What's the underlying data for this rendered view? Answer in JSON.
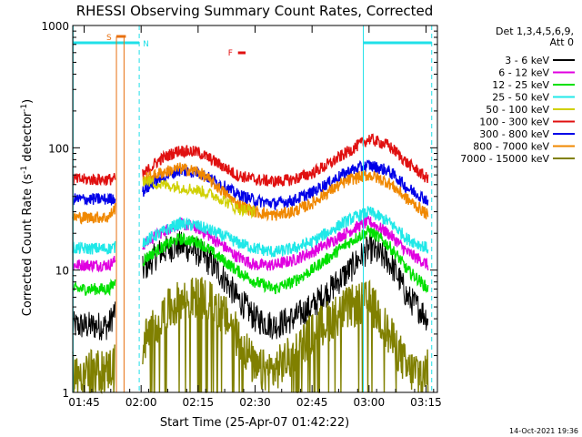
{
  "chart_data": {
    "type": "line",
    "title": "RHESSI Observing Summary Count Rates, Corrected",
    "xlabel": "Start Time (25-Apr-07 01:42:22)",
    "ylabel_parts": [
      "Corrected Count Rate (s",
      "-1",
      " detector",
      "-1",
      ")"
    ],
    "yscale": "log",
    "ylim": [
      1,
      1000
    ],
    "xlim_minutes_after_0142": [
      0,
      96
    ],
    "x_ticks": [
      {
        "label": "01:45",
        "minute": 3
      },
      {
        "label": "02:00",
        "minute": 18
      },
      {
        "label": "02:15",
        "minute": 33
      },
      {
        "label": "02:30",
        "minute": 48
      },
      {
        "label": "02:45",
        "minute": 63
      },
      {
        "label": "03:00",
        "minute": 78
      },
      {
        "label": "03:15",
        "minute": 93
      }
    ],
    "y_ticks": [
      {
        "label": "1",
        "value": 1
      },
      {
        "label": "10",
        "value": 10
      },
      {
        "label": "100",
        "value": 100
      },
      {
        "label": "1000",
        "value": 1000
      }
    ],
    "legend_header": [
      "Det 1,3,4,5,6,9,",
      "Att 0"
    ],
    "legend_placement": "right",
    "timestamp": "14-Oct-2021 19:36",
    "flags": {
      "S": {
        "label": "S",
        "color": "#e87010"
      },
      "N": {
        "label": "N",
        "color": "#20e0e8"
      },
      "F": {
        "label": "F",
        "color": "#e01010"
      }
    },
    "night_intervals_minutes": [
      [
        0,
        17.5
      ],
      [
        76.5,
        94.5
      ]
    ],
    "saa_interval_minutes": [
      11.5,
      13.5
    ],
    "flare_marker_minute": [
      43.5,
      45.5
    ],
    "series": [
      {
        "name": "3 - 6 keV",
        "color": "#000000",
        "x": [
          9.5,
          18.5,
          23,
          28,
          33,
          38,
          43,
          48,
          53,
          58,
          63,
          68,
          73,
          78,
          83,
          88,
          93.5
        ],
        "y": [
          3.5,
          10,
          14,
          16,
          14,
          10,
          6,
          4,
          3.5,
          4,
          5,
          7,
          10,
          15,
          12,
          6,
          4
        ]
      },
      {
        "name": "6 - 12 keV",
        "color": "#e000e0",
        "x": [
          9.5,
          18.5,
          23,
          28,
          33,
          38,
          43,
          48,
          53,
          58,
          63,
          68,
          73,
          78,
          83,
          88,
          93.5
        ],
        "y": [
          11,
          16,
          20,
          24,
          22,
          17,
          13,
          11,
          11,
          12,
          14,
          17,
          21,
          25,
          20,
          14,
          11
        ]
      },
      {
        "name": "12 - 25 keV",
        "color": "#00e000",
        "x": [
          9.5,
          18.5,
          23,
          28,
          33,
          38,
          43,
          48,
          53,
          58,
          63,
          68,
          73,
          78,
          83,
          88,
          93.5
        ],
        "y": [
          7,
          12,
          15,
          18,
          17,
          13,
          10,
          8,
          7,
          8,
          10,
          13,
          17,
          21,
          16,
          10,
          7
        ]
      },
      {
        "name": "25 - 50 keV",
        "color": "#20e8e8",
        "x": [
          9.5,
          18.5,
          23,
          28,
          33,
          38,
          43,
          48,
          53,
          58,
          63,
          68,
          73,
          78,
          83,
          88,
          93.5
        ],
        "y": [
          15,
          17,
          20,
          24,
          23,
          20,
          17,
          15,
          14,
          15,
          17,
          21,
          26,
          30,
          25,
          18,
          15
        ]
      },
      {
        "name": "50 - 100 keV",
        "color": "#d0d000",
        "x": [
          18.5,
          23,
          28,
          33,
          38,
          43,
          48
        ]
      },
      {
        "name": "100 - 300 keV",
        "color": "#e01010",
        "x": [
          9.5,
          18.5,
          23,
          28,
          33,
          38,
          43,
          48,
          53,
          58,
          63,
          68,
          73,
          78,
          83,
          88,
          93.5
        ],
        "y": [
          55,
          60,
          80,
          95,
          92,
          75,
          60,
          55,
          53,
          55,
          62,
          75,
          95,
          118,
          105,
          75,
          55
        ]
      },
      {
        "name": "300 - 800 keV",
        "color": "#0000e8",
        "x": [
          9.5,
          18.5,
          23,
          28,
          33,
          38,
          43,
          48,
          53,
          58,
          63,
          68,
          73,
          78,
          83,
          88,
          93.5
        ],
        "y": [
          38,
          44,
          56,
          65,
          63,
          52,
          42,
          37,
          35,
          37,
          43,
          53,
          65,
          72,
          65,
          47,
          37
        ]
      },
      {
        "name": "800 - 7000 keV",
        "color": "#f08800",
        "x": [
          9.5,
          18.5,
          23,
          28,
          33,
          38,
          43,
          48,
          53,
          58,
          63,
          68,
          73,
          78,
          83,
          88,
          93.5
        ],
        "y": [
          27,
          55,
          62,
          68,
          64,
          48,
          35,
          30,
          28,
          30,
          35,
          45,
          55,
          60,
          52,
          38,
          28
        ]
      },
      {
        "name": "7000 - 15000 keV",
        "color": "#808000",
        "x": [
          0,
          9,
          18.5,
          23,
          28,
          33,
          38,
          43,
          48,
          53,
          58,
          63,
          68,
          73,
          78,
          83,
          88,
          93.5
        ],
        "y": [
          1.5,
          1.5,
          2.5,
          4,
          5.5,
          6,
          5,
          3,
          1.5,
          1.5,
          2,
          3,
          4,
          5,
          5.5,
          3,
          1.5,
          1.5
        ]
      }
    ]
  }
}
